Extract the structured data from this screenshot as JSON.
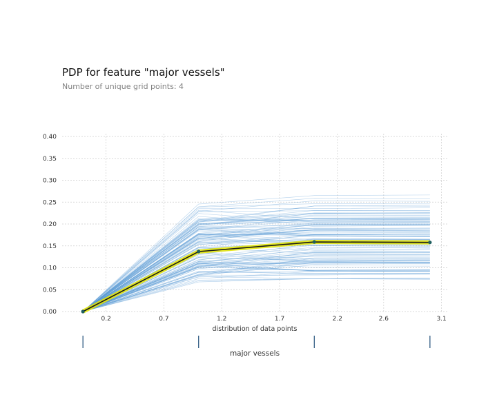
{
  "chart_data": {
    "type": "line",
    "title": "PDP for feature \"major vessels\"",
    "subtitle": "Number of unique grid points: 4",
    "xlabel": "distribution of data points",
    "feature_label": "major vessels",
    "x_ticks": [
      "0.2",
      "0.7",
      "1.2",
      "1.7",
      "2.2",
      "2.6",
      "3.1"
    ],
    "x_tick_values": [
      0.2,
      0.7,
      1.2,
      1.7,
      2.2,
      2.6,
      3.1
    ],
    "xlim": [
      -0.18,
      3.15
    ],
    "ylim": [
      0,
      0.4
    ],
    "y_ticks": [
      "0.00",
      "0.05",
      "0.10",
      "0.15",
      "0.20",
      "0.25",
      "0.30",
      "0.35",
      "0.40"
    ],
    "y_tick_values": [
      0,
      0.05,
      0.1,
      0.15,
      0.2,
      0.25,
      0.3,
      0.35,
      0.4
    ],
    "grid": true,
    "grid_points": [
      0,
      1,
      2,
      3
    ],
    "pdp_values": [
      0.0,
      0.137,
      0.159,
      0.158
    ],
    "ice_band": {
      "min_at_grid1": 0.065,
      "max_at_grid1": 0.235,
      "min_plateau": 0.075,
      "max_plateau": 0.265,
      "line_count": 120
    },
    "distribution_markers": [
      0,
      1,
      2,
      3
    ],
    "colors": {
      "ice": "#5b9bd5",
      "pdp_line": "#1a1a1a",
      "pdp_band": "#e6e600",
      "marker": "#1f5f5f",
      "grid": "#cccccc",
      "dist_marker": "#1f4e79"
    }
  }
}
